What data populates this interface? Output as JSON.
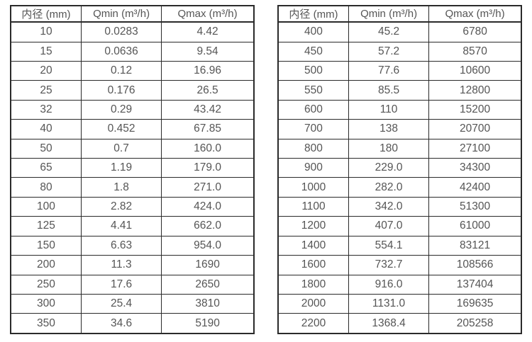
{
  "page": {
    "colors": {
      "border": "#2a2a2a",
      "text": "#555555",
      "background": "#ffffff"
    }
  },
  "chart_data": [
    {
      "type": "table",
      "title": "",
      "columns": [
        "内径 (mm)",
        "Qmin (m³/h)",
        "Qmax (m³/h)"
      ],
      "rows": [
        [
          "10",
          "0.0283",
          "4.42"
        ],
        [
          "15",
          "0.0636",
          "9.54"
        ],
        [
          "20",
          "0.12",
          "16.96"
        ],
        [
          "25",
          "0.176",
          "26.5"
        ],
        [
          "32",
          "0.29",
          "43.42"
        ],
        [
          "40",
          "0.452",
          "67.85"
        ],
        [
          "50",
          "0.7",
          "160.0"
        ],
        [
          "65",
          "1.19",
          "179.0"
        ],
        [
          "80",
          "1.8",
          "271.0"
        ],
        [
          "100",
          "2.82",
          "424.0"
        ],
        [
          "125",
          "4.41",
          "662.0"
        ],
        [
          "150",
          "6.63",
          "954.0"
        ],
        [
          "200",
          "11.3",
          "1690"
        ],
        [
          "250",
          "17.6",
          "2650"
        ],
        [
          "300",
          "25.4",
          "3810"
        ],
        [
          "350",
          "34.6",
          "5190"
        ]
      ]
    },
    {
      "type": "table",
      "title": "",
      "columns": [
        "内径 (mm)",
        "Qmin (m³/h)",
        "Qmax (m³/h)"
      ],
      "rows": [
        [
          "400",
          "45.2",
          "6780"
        ],
        [
          "450",
          "57.2",
          "8570"
        ],
        [
          "500",
          "77.6",
          "10600"
        ],
        [
          "550",
          "85.5",
          "12800"
        ],
        [
          "600",
          "110",
          "15200"
        ],
        [
          "700",
          "138",
          "20700"
        ],
        [
          "800",
          "180",
          "27100"
        ],
        [
          "900",
          "229.0",
          "34300"
        ],
        [
          "1000",
          "282.0",
          "42400"
        ],
        [
          "1100",
          "342.0",
          "51300"
        ],
        [
          "1200",
          "407.0",
          "61000"
        ],
        [
          "1400",
          "554.1",
          "83121"
        ],
        [
          "1600",
          "732.7",
          "108566"
        ],
        [
          "1800",
          "916.0",
          "137404"
        ],
        [
          "2000",
          "1131.0",
          "169635"
        ],
        [
          "2200",
          "1368.4",
          "205258"
        ]
      ]
    }
  ]
}
